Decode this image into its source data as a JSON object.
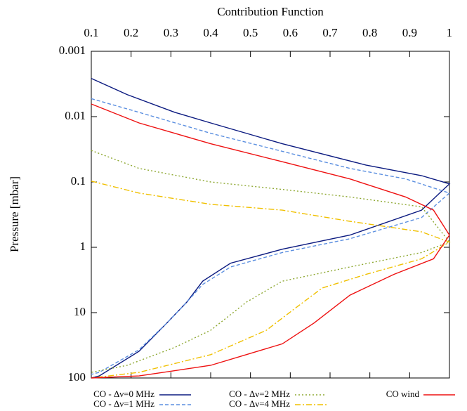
{
  "chart_data": {
    "type": "line",
    "title": "Contribution Function",
    "y_label": "Pressure [mbar]",
    "xlim": [
      0.1,
      1
    ],
    "xticks": [
      0.1,
      0.2,
      0.3,
      0.4,
      0.5,
      0.6,
      0.7,
      0.8,
      0.9,
      1
    ],
    "ylim": [
      0.001,
      100
    ],
    "yticks": [
      0.001,
      0.01,
      0.1,
      1,
      10,
      100
    ],
    "ylog": true,
    "yreverse": true,
    "legend": "bottom",
    "series": [
      {
        "name": "CO - Δν=0 MHz",
        "color": "#0b1a80",
        "dash": "solid",
        "x": [
          0.1,
          0.19,
          0.31,
          0.4,
          0.58,
          0.79,
          0.93,
          1.0,
          0.93,
          0.75,
          0.58,
          0.45,
          0.38,
          0.34,
          0.29,
          0.22,
          0.12,
          0.1
        ],
        "y": [
          0.0026,
          0.0046,
          0.0086,
          0.0125,
          0.026,
          0.055,
          0.08,
          0.107,
          0.27,
          0.65,
          1.07,
          1.75,
          3.3,
          6.9,
          14.4,
          39,
          93,
          100
        ]
      },
      {
        "name": "CO - Δν=1 MHz",
        "color": "#5b8fe0",
        "dash": "dashed",
        "x": [
          0.1,
          0.22,
          0.4,
          0.58,
          0.75,
          0.89,
          1.0,
          0.93,
          0.75,
          0.58,
          0.45,
          0.38,
          0.34,
          0.29,
          0.22,
          0.12,
          0.1
        ],
        "y": [
          0.0053,
          0.0086,
          0.018,
          0.034,
          0.062,
          0.09,
          0.148,
          0.35,
          0.74,
          1.2,
          2.0,
          3.7,
          6.9,
          14.4,
          37,
          82,
          88
        ]
      },
      {
        "name": "CO - Δν=2 MHz",
        "color": "#8ea832",
        "dash": "dotted",
        "x": [
          0.1,
          0.22,
          0.4,
          0.58,
          0.75,
          0.93,
          1.0,
          0.93,
          0.75,
          0.58,
          0.49,
          0.4,
          0.31,
          0.19,
          0.1
        ],
        "y": [
          0.033,
          0.062,
          0.1,
          0.13,
          0.17,
          0.24,
          0.83,
          1.2,
          2.0,
          3.3,
          6.9,
          18.6,
          34,
          64,
          82
        ]
      },
      {
        "name": "CO - Δν=4 MHz",
        "color": "#f0c000",
        "dash": "dashdot",
        "x": [
          0.1,
          0.22,
          0.4,
          0.58,
          0.75,
          0.93,
          1.0,
          0.93,
          0.79,
          0.68,
          0.61,
          0.54,
          0.4,
          0.22,
          0.1
        ],
        "y": [
          0.097,
          0.148,
          0.22,
          0.27,
          0.4,
          0.58,
          0.83,
          1.5,
          2.6,
          4.2,
          8.8,
          18.6,
          44,
          82,
          100
        ]
      },
      {
        "name": "CO wind",
        "color": "#ee1111",
        "dash": "solid",
        "x": [
          0.1,
          0.22,
          0.4,
          0.58,
          0.75,
          0.89,
          0.96,
          1.0,
          0.96,
          0.86,
          0.75,
          0.66,
          0.58,
          0.4,
          0.22,
          0.1
        ],
        "y": [
          0.0064,
          0.0125,
          0.026,
          0.049,
          0.09,
          0.17,
          0.27,
          0.65,
          1.5,
          2.6,
          5.4,
          14.4,
          30,
          64,
          93,
          100
        ]
      }
    ]
  }
}
